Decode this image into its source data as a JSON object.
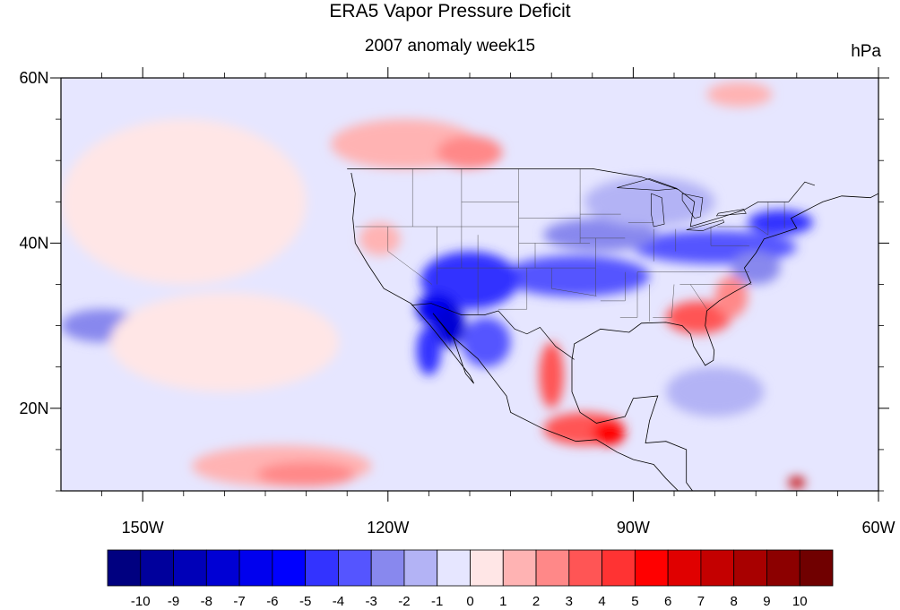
{
  "chart_data": {
    "type": "heatmap",
    "title": "ERA5 Vapor Pressure Deficit",
    "subtitle": "2007 anomaly week15",
    "units": "hPa",
    "xlim": [
      -160,
      -60
    ],
    "ylim": [
      10,
      60
    ],
    "x_ticks": [
      {
        "value": -150,
        "label": "150W"
      },
      {
        "value": -120,
        "label": "120W"
      },
      {
        "value": -90,
        "label": "90W"
      },
      {
        "value": -60,
        "label": "60W"
      }
    ],
    "y_ticks": [
      {
        "value": 20,
        "label": "20N"
      },
      {
        "value": 40,
        "label": "40N"
      },
      {
        "value": 60,
        "label": "60N"
      }
    ],
    "colorbar": {
      "labels": [
        "-10",
        "-9",
        "-8",
        "-7",
        "-6",
        "-5",
        "-4",
        "-3",
        "-2",
        "-1",
        "0",
        "1",
        "2",
        "3",
        "4",
        "5",
        "6",
        "7",
        "8",
        "9",
        "10"
      ],
      "colors": [
        "#000080",
        "#00009c",
        "#0000b8",
        "#0000d4",
        "#0000ee",
        "#0000ff",
        "#3333ff",
        "#5555ff",
        "#8888ee",
        "#b3b3f5",
        "#e6e6ff",
        "#ffe6e6",
        "#ffb3b3",
        "#ff8888",
        "#ff5555",
        "#ff3333",
        "#ff0000",
        "#e00000",
        "#c40000",
        "#a80000",
        "#8c0000",
        "#700000"
      ]
    },
    "colors": {
      "ocean_background": "#e6e6ff",
      "land_background": "#e6e6ff",
      "missing": "#d3d3d3"
    },
    "anomaly_regions": [
      {
        "lon": -97,
        "lat": 36,
        "rx": 9,
        "ry": 2.5,
        "value": -4
      },
      {
        "lon": -110,
        "lat": 35.5,
        "rx": 6,
        "ry": 3.5,
        "value": -5
      },
      {
        "lon": -114,
        "lat": 32,
        "rx": 2.5,
        "ry": 2,
        "value": -7
      },
      {
        "lon": -112.5,
        "lat": 30,
        "rx": 2,
        "ry": 2.5,
        "value": -8
      },
      {
        "lon": -115,
        "lat": 27,
        "rx": 1.5,
        "ry": 3,
        "value": -5
      },
      {
        "lon": -108,
        "lat": 28,
        "rx": 3,
        "ry": 3,
        "value": -4
      },
      {
        "lon": -80,
        "lat": 39.5,
        "rx": 10,
        "ry": 2,
        "value": -4
      },
      {
        "lon": -72,
        "lat": 42.5,
        "rx": 4,
        "ry": 1.5,
        "value": -5
      },
      {
        "lon": -75,
        "lat": 37,
        "rx": 3,
        "ry": 2,
        "value": -3
      },
      {
        "lon": -94,
        "lat": 41,
        "rx": 7,
        "ry": 2,
        "value": -3
      },
      {
        "lon": -88,
        "lat": 45,
        "rx": 8,
        "ry": 3,
        "value": -2
      },
      {
        "lon": -104,
        "lat": 47,
        "rx": 6,
        "ry": 2,
        "value": -1
      },
      {
        "lon": -121,
        "lat": 40.5,
        "rx": 2.5,
        "ry": 2,
        "value": 1
      },
      {
        "lon": -155,
        "lat": 30,
        "rx": 5,
        "ry": 2,
        "value": -3
      },
      {
        "lon": -80,
        "lat": 22,
        "rx": 6,
        "ry": 3,
        "value": -2
      },
      {
        "lon": -82,
        "lat": 31,
        "rx": 4,
        "ry": 2,
        "value": 3
      },
      {
        "lon": -78,
        "lat": 33.5,
        "rx": 2,
        "ry": 2.5,
        "value": 2
      },
      {
        "lon": -100,
        "lat": 24,
        "rx": 1.5,
        "ry": 4,
        "value": 3
      },
      {
        "lon": -96,
        "lat": 17.5,
        "rx": 5,
        "ry": 2,
        "value": 3
      },
      {
        "lon": -93,
        "lat": 17,
        "rx": 2,
        "ry": 1.5,
        "value": 5
      },
      {
        "lon": -118,
        "lat": 52,
        "rx": 9,
        "ry": 3,
        "value": 1
      },
      {
        "lon": -110,
        "lat": 51,
        "rx": 4,
        "ry": 2,
        "value": 2
      },
      {
        "lon": -133,
        "lat": 13,
        "rx": 11,
        "ry": 2.5,
        "value": 1
      },
      {
        "lon": -130,
        "lat": 12,
        "rx": 6,
        "ry": 1.5,
        "value": 2
      },
      {
        "lon": -145,
        "lat": 45,
        "rx": 15,
        "ry": 10,
        "value": 0
      },
      {
        "lon": -140,
        "lat": 28,
        "rx": 14,
        "ry": 6,
        "value": 0
      },
      {
        "lon": -70,
        "lat": 11,
        "rx": 1,
        "ry": 0.7,
        "value": 7
      },
      {
        "lon": -77,
        "lat": 58,
        "rx": 4,
        "ry": 1.5,
        "value": 1
      }
    ]
  }
}
